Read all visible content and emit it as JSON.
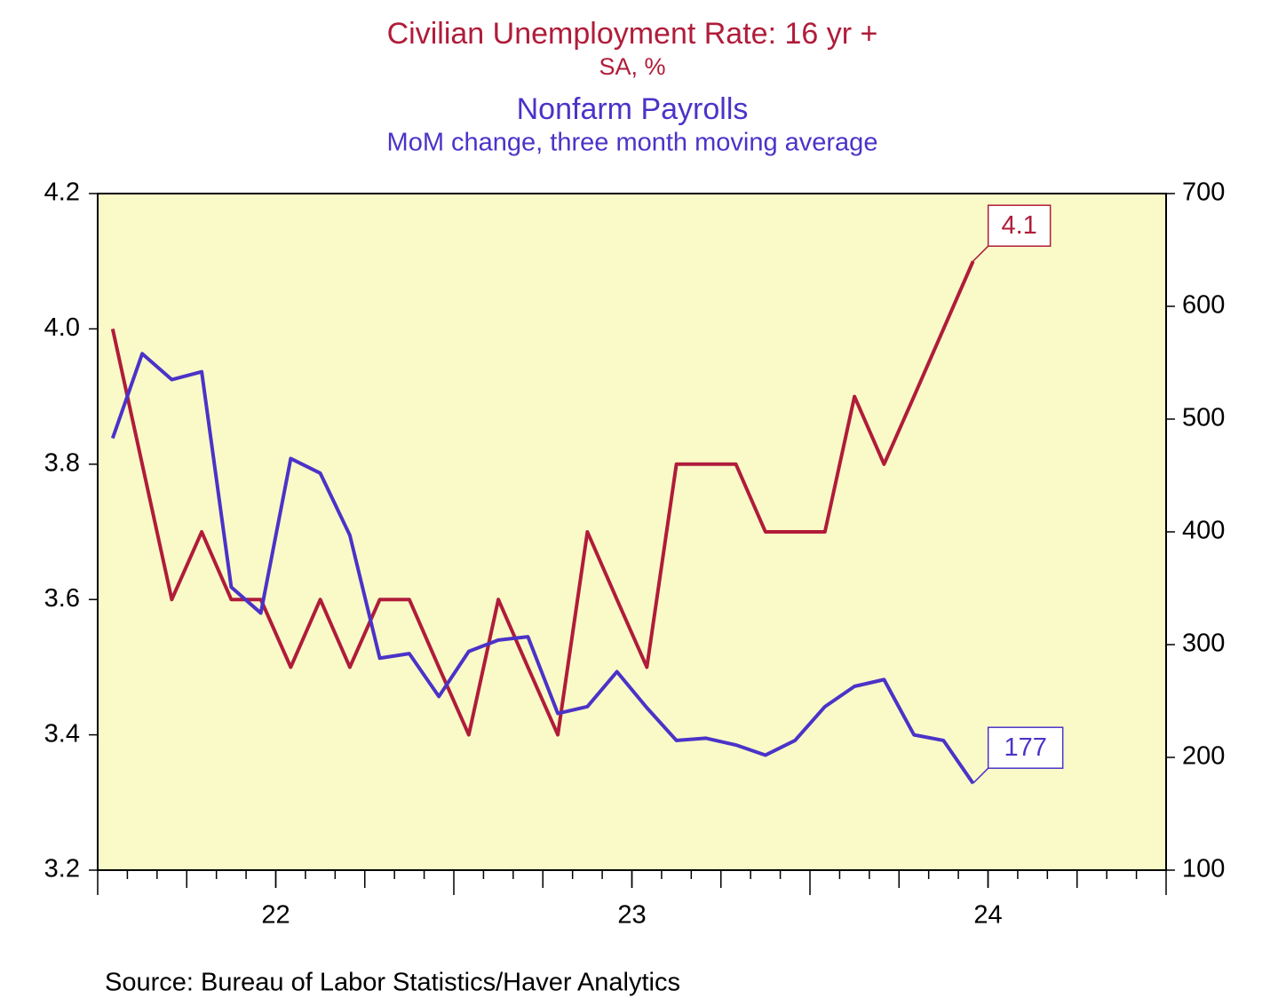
{
  "chart_data": {
    "type": "line",
    "source": "Source:  Bureau of Labor Statistics/Haver Analytics",
    "x": [
      2022.042,
      2022.125,
      2022.208,
      2022.292,
      2022.375,
      2022.458,
      2022.542,
      2022.625,
      2022.708,
      2022.792,
      2022.875,
      2022.958,
      2023.042,
      2023.125,
      2023.208,
      2023.292,
      2023.375,
      2023.458,
      2023.542,
      2023.625,
      2023.708,
      2023.792,
      2023.875,
      2023.958,
      2024.042,
      2024.125,
      2024.208,
      2024.292,
      2024.375,
      2024.458
    ],
    "xlim": [
      2022,
      2025
    ],
    "xticks": [
      {
        "value": 2022.5,
        "label": "22"
      },
      {
        "value": 2023.5,
        "label": "23"
      },
      {
        "value": 2024.5,
        "label": "24"
      }
    ],
    "ylim": [
      3.2,
      4.2
    ],
    "yticks": [
      {
        "value": 3.2,
        "label": "3.2"
      },
      {
        "value": 3.4,
        "label": "3.4"
      },
      {
        "value": 3.6,
        "label": "3.6"
      },
      {
        "value": 3.8,
        "label": "3.8"
      },
      {
        "value": 4,
        "label": "4.0"
      },
      {
        "value": 4.2,
        "label": "4.2"
      }
    ],
    "y2lim": [
      100,
      700
    ],
    "y2ticks": [
      100,
      200,
      300,
      400,
      500,
      600,
      700
    ],
    "background": "#fafac8",
    "label_last": true,
    "series": [
      {
        "name": "Civilian Unemployment Rate: 16 yr +",
        "units": "SA, %",
        "color": "#b01c3a",
        "axis": "y",
        "values": [
          4.0,
          3.8,
          3.6,
          3.7,
          3.6,
          3.6,
          3.5,
          3.6,
          3.5,
          3.6,
          3.6,
          3.5,
          3.4,
          3.6,
          3.5,
          3.4,
          3.7,
          3.6,
          3.5,
          3.8,
          3.8,
          3.8,
          3.7,
          3.7,
          3.7,
          3.9,
          3.8,
          3.9,
          4.0,
          4.1
        ]
      },
      {
        "name": "Nonfarm Payrolls",
        "units": "MoM change, three month moving average",
        "color": "#4b33c8",
        "axis": "y2",
        "values": [
          483,
          558,
          535,
          542,
          351,
          328,
          465,
          452,
          397,
          288,
          292,
          254,
          294,
          304,
          307,
          239,
          245,
          276,
          244,
          215,
          217,
          211,
          202,
          215,
          245,
          263,
          269,
          220,
          215,
          177
        ]
      }
    ]
  }
}
